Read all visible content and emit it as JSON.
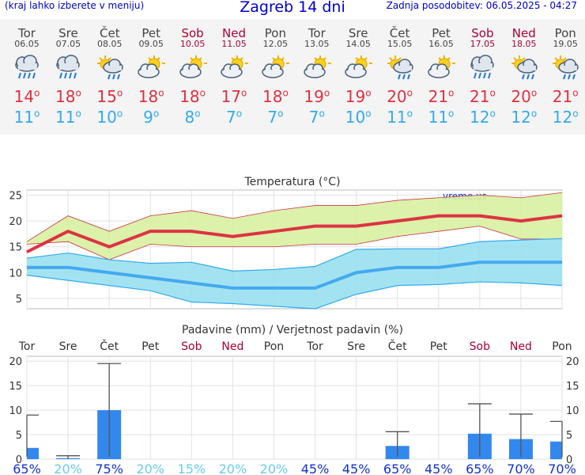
{
  "header": {
    "menu_hint": "(kraj lahko izberete v meniju)",
    "title": "Zagreb 14 dni",
    "updated": "Zadnja posodobitev: 06.05.2025 - 04:27"
  },
  "days": [
    {
      "name": "Tor",
      "date": "06.05",
      "weekend": false,
      "icon": "rain-cloud-icon",
      "tmax": "14",
      "tmin": "11"
    },
    {
      "name": "Sre",
      "date": "07.05",
      "weekend": false,
      "icon": "rain-cloud-icon",
      "tmax": "18",
      "tmin": "11"
    },
    {
      "name": "Čet",
      "date": "08.05",
      "weekend": false,
      "icon": "sun-rain-cloud-icon",
      "tmax": "15",
      "tmin": "10"
    },
    {
      "name": "Pet",
      "date": "09.05",
      "weekend": false,
      "icon": "partly-cloudy-icon",
      "tmax": "18",
      "tmin": "9"
    },
    {
      "name": "Sob",
      "date": "10.05",
      "weekend": true,
      "icon": "partly-cloudy-icon",
      "tmax": "18",
      "tmin": "8"
    },
    {
      "name": "Ned",
      "date": "11.05",
      "weekend": true,
      "icon": "partly-cloudy-icon",
      "tmax": "17",
      "tmin": "7"
    },
    {
      "name": "Pon",
      "date": "12.05",
      "weekend": false,
      "icon": "partly-cloudy-icon",
      "tmax": "18",
      "tmin": "7"
    },
    {
      "name": "Tor",
      "date": "13.05",
      "weekend": false,
      "icon": "partly-cloudy-icon",
      "tmax": "19",
      "tmin": "7"
    },
    {
      "name": "Sre",
      "date": "14.05",
      "weekend": false,
      "icon": "partly-cloudy-icon",
      "tmax": "19",
      "tmin": "10"
    },
    {
      "name": "Čet",
      "date": "15.05",
      "weekend": false,
      "icon": "sun-rain-cloud-icon",
      "tmax": "20",
      "tmin": "11"
    },
    {
      "name": "Pet",
      "date": "16.05",
      "weekend": false,
      "icon": "partly-cloudy-icon",
      "tmax": "21",
      "tmin": "11"
    },
    {
      "name": "Sob",
      "date": "17.05",
      "weekend": true,
      "icon": "rain-cloud-icon",
      "tmax": "21",
      "tmin": "12"
    },
    {
      "name": "Ned",
      "date": "18.05",
      "weekend": true,
      "icon": "sun-rain-cloud-icon",
      "tmax": "20",
      "tmin": "12"
    },
    {
      "name": "Pon",
      "date": "19.05",
      "weekend": false,
      "icon": "sun-rain-cloud-icon",
      "tmax": "21",
      "tmin": "12"
    }
  ],
  "degree_symbol": "o",
  "colors": {
    "max_line": "#dd3344",
    "max_band": "#d8f0a0",
    "min_line": "#44aaee",
    "min_band": "#99e0f0",
    "bar": "#3388ee",
    "weekend": "#aa0033",
    "pct_high": "#1133cc",
    "pct_low": "#66ccf0"
  },
  "chart_data": [
    {
      "type": "line",
      "title": "Temperatura (°C)",
      "watermark": "vreme.us",
      "ylim": [
        3,
        26
      ],
      "yticks": [
        5,
        10,
        15,
        20,
        25
      ],
      "x": [
        "06.05",
        "07.05",
        "08.05",
        "09.05",
        "10.05",
        "11.05",
        "12.05",
        "13.05",
        "14.05",
        "15.05",
        "16.05",
        "17.05",
        "18.05",
        "19.05"
      ],
      "series": [
        {
          "role": "max",
          "values": [
            14,
            18,
            15,
            18,
            18,
            17,
            18,
            19,
            19,
            20,
            21,
            21,
            20,
            21
          ],
          "band_low": [
            15.5,
            16,
            12.5,
            15.5,
            15,
            15,
            15,
            15.5,
            15.5,
            17,
            18,
            19,
            16.5,
            16.5
          ],
          "band_high": [
            16,
            21,
            18,
            21,
            22,
            20.5,
            22,
            23,
            23,
            24,
            24.5,
            25,
            24.5,
            25.5
          ]
        },
        {
          "role": "min",
          "values": [
            11,
            11,
            10,
            9,
            8,
            7,
            7,
            7,
            10,
            11,
            11,
            12,
            12,
            12
          ],
          "band_low": [
            9.5,
            8.5,
            7.5,
            6.5,
            4.3,
            4,
            3.5,
            3,
            5.8,
            7.5,
            7.7,
            8.2,
            8,
            7.5
          ],
          "band_high": [
            12.8,
            13.8,
            12.5,
            11.8,
            12,
            10.3,
            10.6,
            11.2,
            14.5,
            14.6,
            14.6,
            16,
            16.3,
            16.6
          ]
        }
      ]
    },
    {
      "type": "bar",
      "title": "Padavine (mm) / Verjetnost padavin (%)",
      "categories": [
        "Tor",
        "Sre",
        "Čet",
        "Pet",
        "Sob",
        "Ned",
        "Pon",
        "Tor",
        "Sre",
        "Čet",
        "Pet",
        "Sob",
        "Ned",
        "Pon"
      ],
      "weekend": [
        false,
        false,
        false,
        false,
        true,
        true,
        false,
        false,
        false,
        false,
        false,
        true,
        true,
        false
      ],
      "ylim": [
        0,
        21
      ],
      "yticks": [
        0,
        5,
        10,
        15,
        20
      ],
      "values": [
        2.3,
        0.2,
        10,
        0,
        0,
        0,
        0,
        0,
        0,
        2.7,
        0,
        5.2,
        4.1,
        3.6
      ],
      "err_high": [
        9,
        0.7,
        19.5,
        0,
        0,
        0,
        0,
        0,
        0,
        5.6,
        0,
        11.3,
        9.2,
        7.7
      ],
      "probability": [
        "65%",
        "20%",
        "75%",
        "20%",
        "15%",
        "20%",
        "20%",
        "45%",
        "45%",
        "65%",
        "45%",
        "65%",
        "70%",
        "70%"
      ]
    }
  ]
}
